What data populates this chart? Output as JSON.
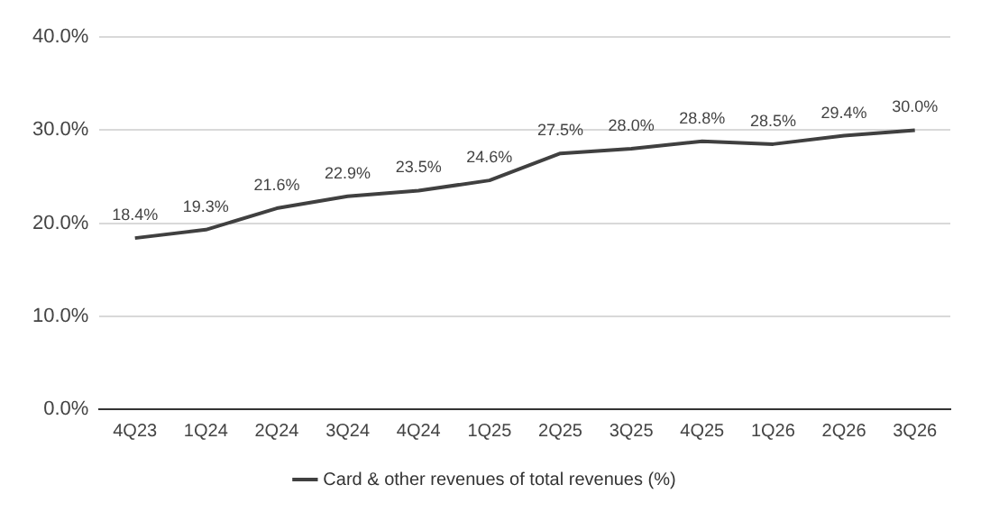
{
  "chart_data": {
    "type": "line",
    "categories": [
      "4Q23",
      "1Q24",
      "2Q24",
      "3Q24",
      "4Q24",
      "1Q25",
      "2Q25",
      "3Q25",
      "4Q25",
      "1Q26",
      "2Q26",
      "3Q26"
    ],
    "series": [
      {
        "name": "Card & other revenues of total revenues (%)",
        "color": "#404040",
        "values": [
          18.4,
          19.3,
          21.6,
          22.9,
          23.5,
          24.6,
          27.5,
          28.0,
          28.8,
          28.5,
          29.4,
          30.0
        ],
        "value_labels": [
          "18.4%",
          "19.3%",
          "21.6%",
          "22.9%",
          "23.5%",
          "24.6%",
          "27.5%",
          "28.0%",
          "28.8%",
          "28.5%",
          "29.4%",
          "30.0%"
        ]
      }
    ],
    "ylim": [
      0,
      40
    ],
    "yticks": [
      {
        "value": 0,
        "label": "0.0%"
      },
      {
        "value": 10,
        "label": "10.0%"
      },
      {
        "value": 20,
        "label": "20.0%"
      },
      {
        "value": 30,
        "label": "30.0%"
      },
      {
        "value": 40,
        "label": "40.0%"
      }
    ],
    "grid": "y",
    "legend": "bottom",
    "marker": "none",
    "line_style": "solid"
  }
}
